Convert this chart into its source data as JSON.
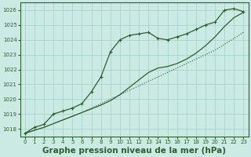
{
  "bg_color": "#cceae4",
  "grid_color": "#aad4cc",
  "line_color": "#2d5e30",
  "title": "Graphe pression niveau de la mer (hPa)",
  "xlabel_fontsize": 7.5,
  "xlim": [
    -0.5,
    23.5
  ],
  "ylim": [
    1017.5,
    1026.5
  ],
  "yticks": [
    1018,
    1019,
    1020,
    1021,
    1022,
    1023,
    1024,
    1025,
    1026
  ],
  "xticks": [
    0,
    1,
    2,
    3,
    4,
    5,
    6,
    7,
    8,
    9,
    10,
    11,
    12,
    13,
    14,
    15,
    16,
    17,
    18,
    19,
    20,
    21,
    22,
    23
  ],
  "x": [
    0,
    1,
    2,
    3,
    4,
    5,
    6,
    7,
    8,
    9,
    10,
    11,
    12,
    13,
    14,
    15,
    16,
    17,
    18,
    19,
    20,
    21,
    22,
    23
  ],
  "line_marked": [
    1017.7,
    1018.1,
    1018.3,
    1019.0,
    1019.2,
    1019.4,
    1019.7,
    1020.5,
    1021.5,
    1023.2,
    1024.0,
    1024.3,
    1024.4,
    1024.5,
    1024.1,
    1024.0,
    1024.2,
    1024.4,
    1024.7,
    1025.0,
    1025.2,
    1026.0,
    1026.1,
    1025.9
  ],
  "line_dotted": [
    1017.7,
    1017.9,
    1018.1,
    1018.35,
    1018.6,
    1018.85,
    1019.1,
    1019.4,
    1019.7,
    1020.0,
    1020.3,
    1020.6,
    1020.9,
    1021.2,
    1021.5,
    1021.8,
    1022.1,
    1022.4,
    1022.7,
    1023.0,
    1023.3,
    1023.7,
    1024.1,
    1024.5
  ],
  "line_plain": [
    1017.7,
    1017.9,
    1018.1,
    1018.35,
    1018.6,
    1018.85,
    1019.1,
    1019.35,
    1019.6,
    1019.9,
    1020.3,
    1020.8,
    1021.3,
    1021.8,
    1022.1,
    1022.2,
    1022.4,
    1022.7,
    1023.1,
    1023.6,
    1024.2,
    1024.9,
    1025.5,
    1025.85
  ]
}
